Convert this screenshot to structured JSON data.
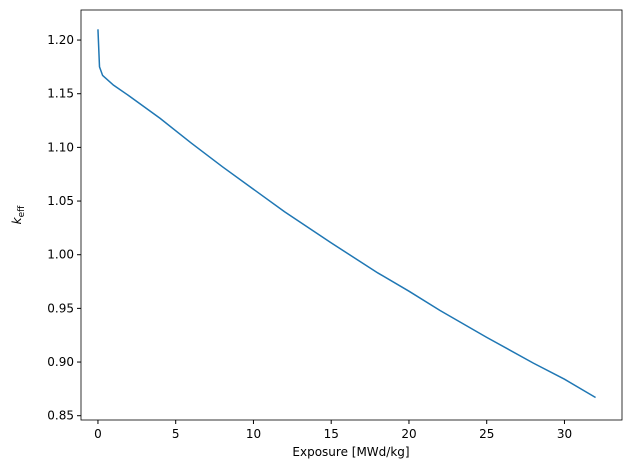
{
  "chart_data": {
    "type": "line",
    "xlabel": "Exposure [MWd/kg]",
    "ylabel": "k",
    "ylabel_subscript": "eff",
    "x": [
      0,
      0.1,
      0.3,
      1,
      2,
      4,
      6,
      8,
      10,
      12,
      15,
      18,
      20,
      22,
      25,
      28,
      30,
      32
    ],
    "series": [
      {
        "color": "#1f77b4",
        "values": [
          1.21,
          1.175,
          1.167,
          1.158,
          1.148,
          1.127,
          1.104,
          1.082,
          1.061,
          1.04,
          1.011,
          0.983,
          0.966,
          0.948,
          0.923,
          0.899,
          0.884,
          0.867
        ]
      }
    ],
    "xlim": [
      -1.09,
      33.7
    ],
    "ylim": [
      0.846,
      1.228
    ],
    "xticks": [
      0,
      5,
      10,
      15,
      20,
      25,
      30
    ],
    "yticks": [
      {
        "value": 0.85,
        "label": "0.85"
      },
      {
        "value": 0.9,
        "label": "0.90"
      },
      {
        "value": 0.95,
        "label": "0.95"
      },
      {
        "value": 1.0,
        "label": "1.00"
      },
      {
        "value": 1.05,
        "label": "1.05"
      },
      {
        "value": 1.1,
        "label": "1.10"
      },
      {
        "value": 1.15,
        "label": "1.15"
      },
      {
        "value": 1.2,
        "label": "1.20"
      }
    ],
    "grid": false
  }
}
